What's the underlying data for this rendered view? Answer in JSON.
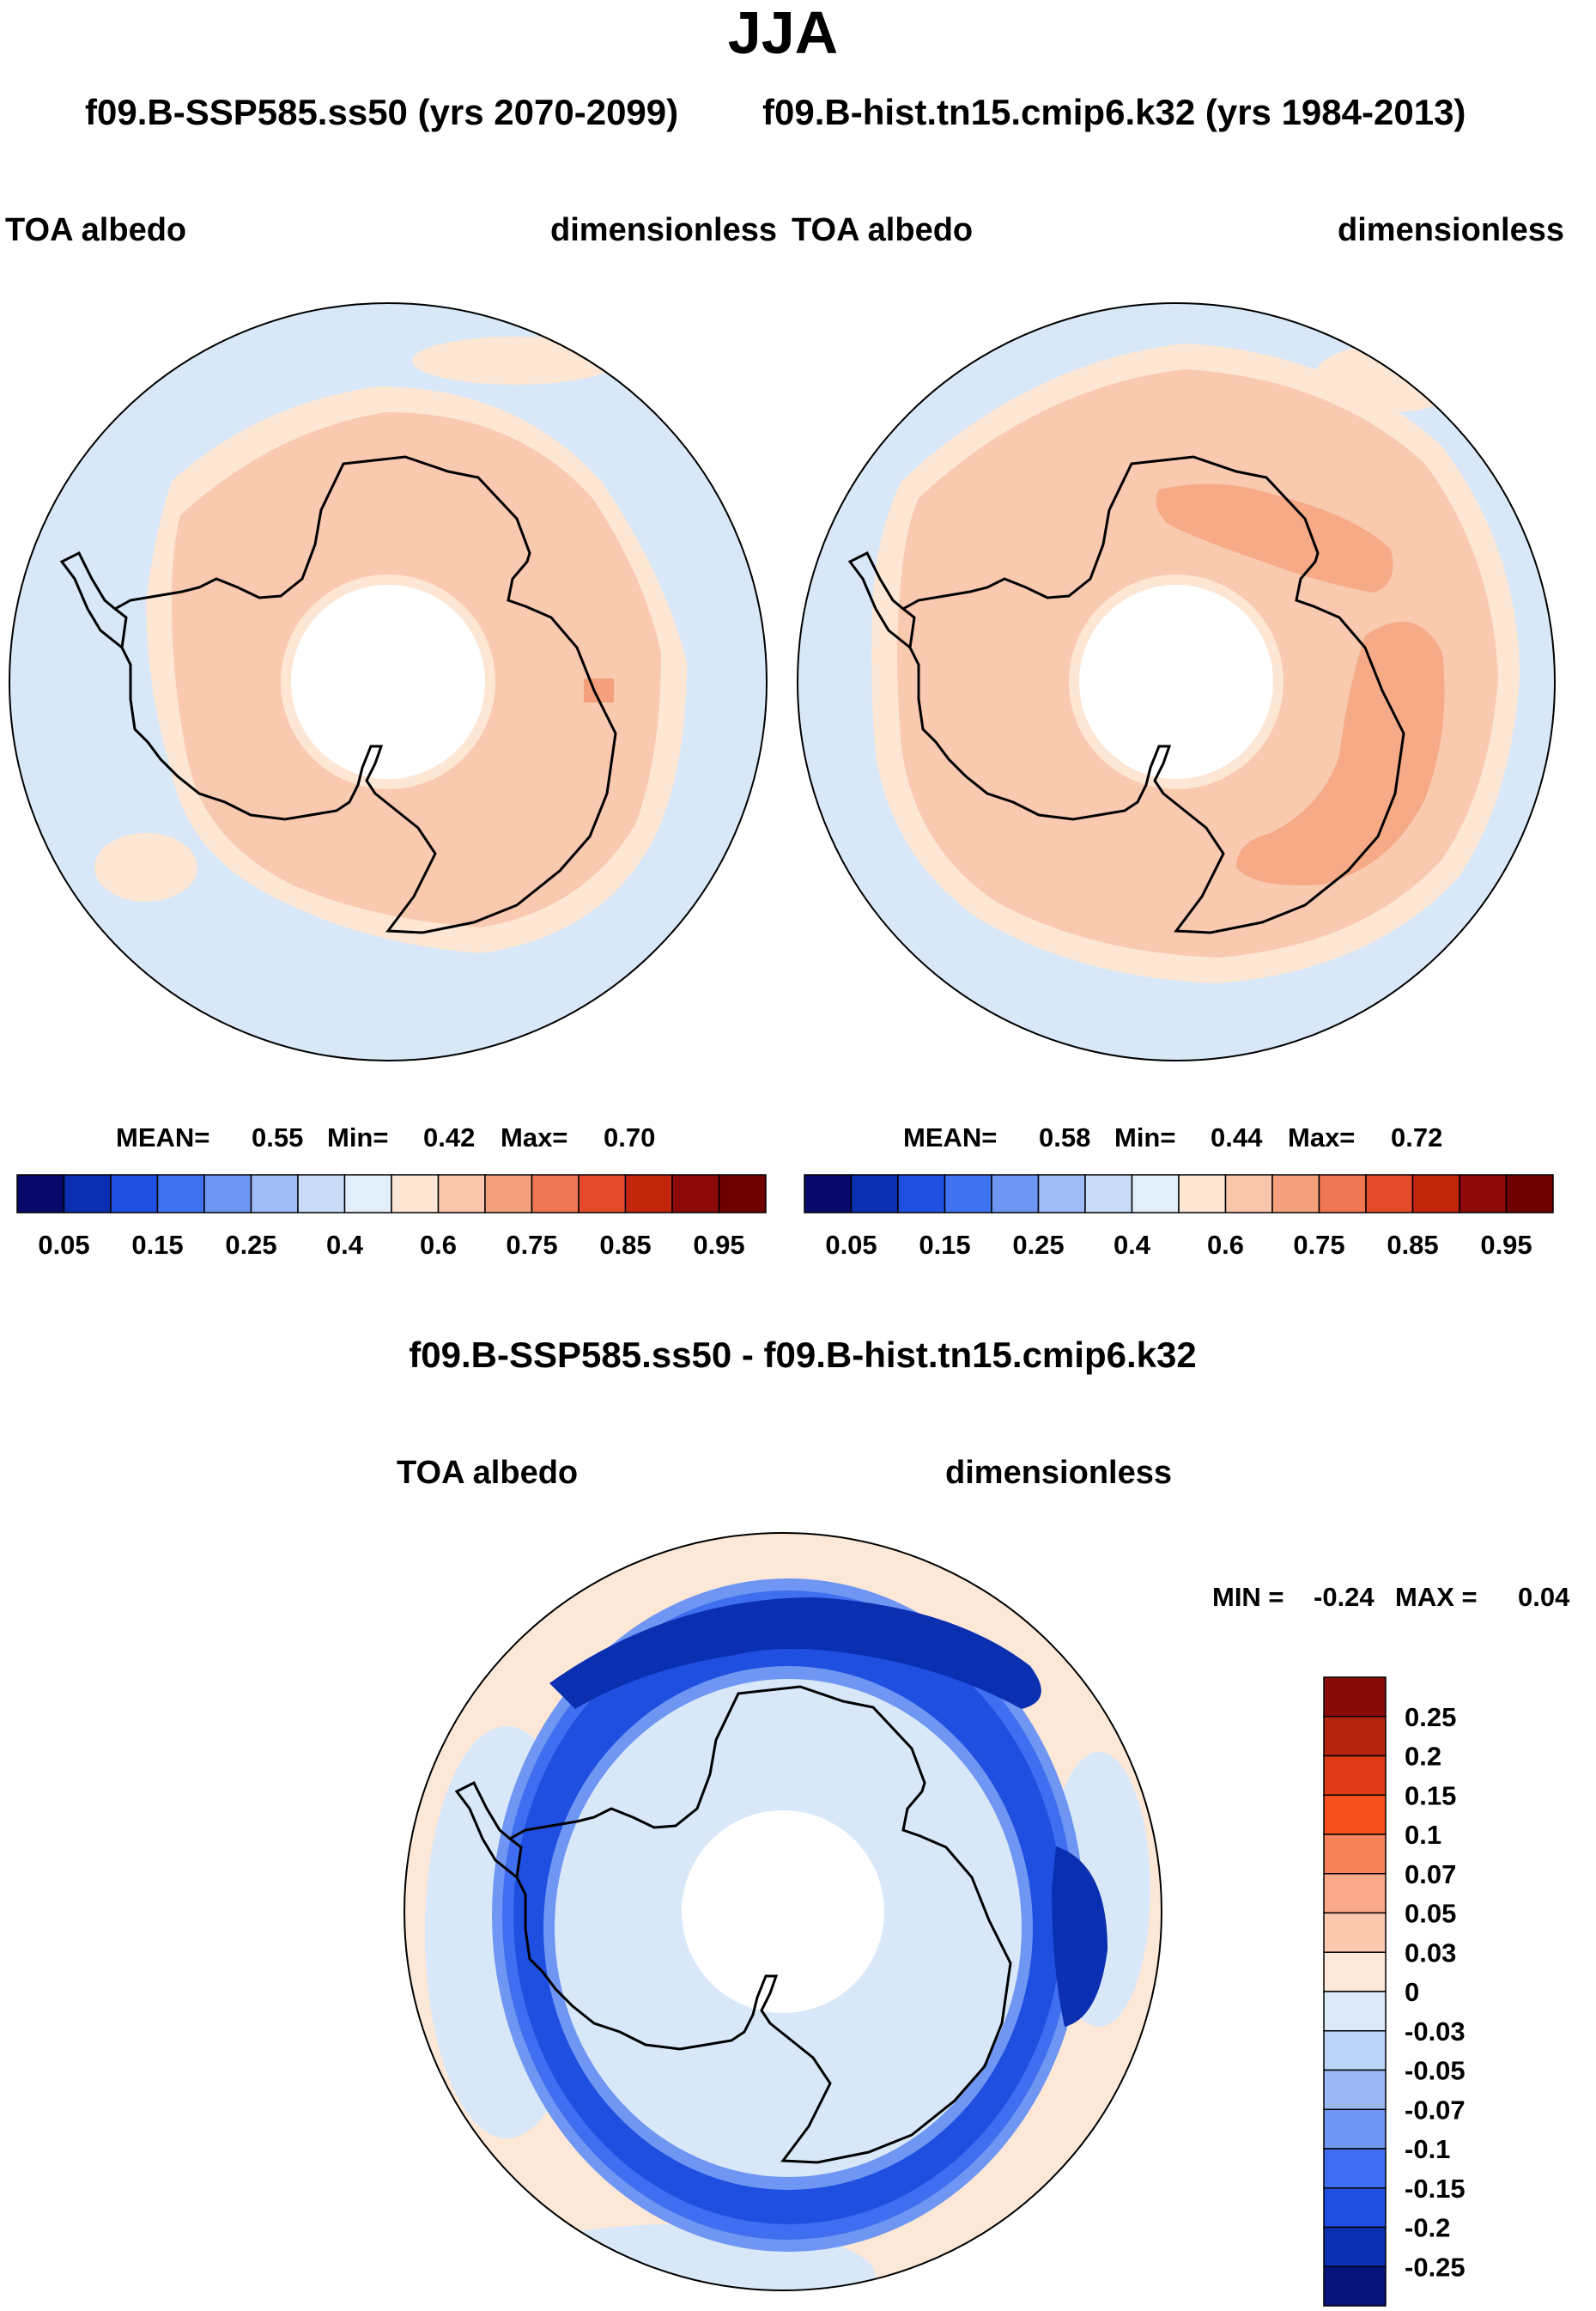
{
  "figure": {
    "title": "JJA",
    "subtitle_left": "f09.B-SSP585.ss50 (yrs 2070-2099)",
    "subtitle_right": "f09.B-hist.tn15.cmip6.k32 (yrs 1984-2013)",
    "diff_title": "f09.B-SSP585.ss50 - f09.B-hist.tn15.cmip6.k32"
  },
  "chart_data": [
    {
      "type": "heatmap",
      "projection": "south-polar-stereographic",
      "variable": "TOA albedo",
      "units": "dimensionless",
      "case": "f09.B-SSP585.ss50",
      "years": "2070-2099",
      "stats": {
        "mean_label": "MEAN=",
        "mean": "0.55",
        "min_label": "Min=",
        "min": "0.42",
        "max_label": "Max=",
        "max": "0.70"
      },
      "levels": [
        "0.05",
        "0.1",
        "0.15",
        "0.2",
        "0.25",
        "0.3",
        "0.4",
        "0.5",
        "0.6",
        "0.7",
        "0.75",
        "0.8",
        "0.85",
        "0.9",
        "0.95"
      ],
      "tick_labels": [
        "0.05",
        "0.15",
        "0.25",
        "0.4",
        "0.6",
        "0.75",
        "0.85",
        "0.95"
      ],
      "colors": [
        "#08086b",
        "#0a2fb0",
        "#1f4fe0",
        "#3f72f0",
        "#6f96f2",
        "#9fbcf6",
        "#c8dcf8",
        "#e3eefb",
        "#fde6d4",
        "#f9c6ac",
        "#f4a07c",
        "#ef7652",
        "#e34a2a",
        "#c1260d",
        "#8c0a0a",
        "#6e0000"
      ]
    },
    {
      "type": "heatmap",
      "projection": "south-polar-stereographic",
      "variable": "TOA albedo",
      "units": "dimensionless",
      "case": "f09.B-hist.tn15.cmip6.k32",
      "years": "1984-2013",
      "stats": {
        "mean_label": "MEAN=",
        "mean": "0.58",
        "min_label": "Min=",
        "min": "0.44",
        "max_label": "Max=",
        "max": "0.72"
      },
      "levels": [
        "0.05",
        "0.1",
        "0.15",
        "0.2",
        "0.25",
        "0.3",
        "0.4",
        "0.5",
        "0.6",
        "0.7",
        "0.75",
        "0.8",
        "0.85",
        "0.9",
        "0.95"
      ],
      "tick_labels": [
        "0.05",
        "0.15",
        "0.25",
        "0.4",
        "0.6",
        "0.75",
        "0.85",
        "0.95"
      ]
    },
    {
      "type": "heatmap",
      "projection": "south-polar-stereographic",
      "variable": "TOA albedo",
      "units": "dimensionless",
      "title": "f09.B-SSP585.ss50 - f09.B-hist.tn15.cmip6.k32",
      "stats": {
        "min_label": "MIN =",
        "min": "-0.24",
        "max_label": "MAX =",
        "max": "0.04"
      },
      "levels": [
        "0.25",
        "0.2",
        "0.15",
        "0.1",
        "0.07",
        "0.05",
        "0.03",
        "0",
        "-0.03",
        "-0.05",
        "-0.07",
        "-0.1",
        "-0.15",
        "-0.2",
        "-0.25"
      ],
      "colors": [
        "#8a0a0a",
        "#b5240c",
        "#dd3a15",
        "#f5501e",
        "#f7825a",
        "#f9a98a",
        "#fbc9b0",
        "#fde8d8",
        "#dce9f8",
        "#bcd3f8",
        "#9ab8f6",
        "#6f96f2",
        "#3f6ef0",
        "#1f4fe0",
        "#0a2fb0",
        "#06127a"
      ]
    }
  ],
  "map_colors": {
    "ocean": "#d8e8f8",
    "seaice_edge": "#fde6d4",
    "ice_main": "#f9c9b0",
    "ice_high": "#f6aa86",
    "ice_patch": "#f4a07c",
    "pole_hole": "#ffffff",
    "coast": "#000000",
    "diff_positive": "#fde8d8",
    "diff_ring1": "#6f96f2",
    "diff_ring2": "#3f6ef0",
    "diff_ring3": "#1f4fe0",
    "diff_ring4": "#0a2fb0"
  }
}
